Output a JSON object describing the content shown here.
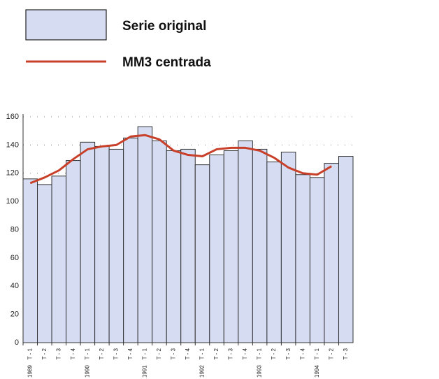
{
  "chart_data": {
    "type": "bar_line",
    "legend": [
      {
        "name": "Serie original",
        "kind": "bar"
      },
      {
        "name": "MM3 centrada",
        "kind": "line"
      }
    ],
    "categories": [
      "T - 1",
      "T - 2",
      "T - 3",
      "T - 4",
      "T - 1",
      "T - 2",
      "T - 3",
      "T - 4",
      "T - 1",
      "T - 2",
      "T - 3",
      "T - 4",
      "T - 1",
      "T - 2",
      "T - 3",
      "T - 4",
      "T - 1",
      "T - 2",
      "T - 3",
      "T - 4",
      "T - 1",
      "T - 2",
      "T - 3"
    ],
    "years": [
      "1989",
      null,
      null,
      null,
      "1990",
      null,
      null,
      null,
      "1991",
      null,
      null,
      null,
      "1992",
      null,
      null,
      null,
      "1993",
      null,
      null,
      null,
      "1994",
      null,
      null
    ],
    "series": [
      {
        "name": "Serie original",
        "type": "bar",
        "color": "#d6ddf3",
        "values": [
          116,
          112,
          118,
          129,
          142,
          139,
          137,
          145,
          153,
          143,
          136,
          137,
          126,
          133,
          136,
          143,
          137,
          128,
          135,
          119,
          117,
          127,
          132
        ]
      },
      {
        "name": "MM3 centrada",
        "type": "line",
        "color": "#c8402a",
        "values": [
          113,
          117,
          122,
          130,
          137,
          139,
          140,
          146,
          147,
          144,
          136,
          133,
          132,
          137,
          138,
          138,
          136,
          131,
          124,
          120,
          119,
          125,
          null
        ]
      }
    ],
    "ylim": [
      0,
      160
    ],
    "yticks": [
      0,
      20,
      40,
      60,
      80,
      100,
      120,
      140,
      160
    ],
    "grid": true
  }
}
